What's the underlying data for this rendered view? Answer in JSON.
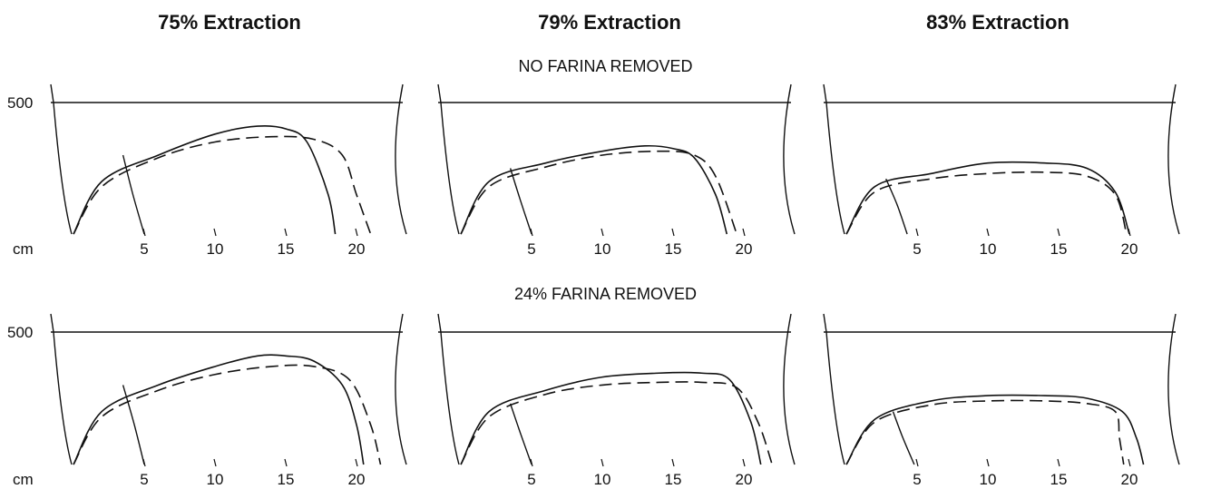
{
  "column_titles": [
    "75% Extraction",
    "79% Extraction",
    "83% Extraction"
  ],
  "row_titles": [
    "NO FARINA REMOVED",
    "24% FARINA REMOVED"
  ],
  "y_tick_label": "500",
  "x_axis_label": "cm",
  "x_tick_labels": [
    "5",
    "10",
    "15",
    "20"
  ],
  "chart_data": [
    {
      "type": "line",
      "title": "75% Extraction",
      "subtitle": "NO FARINA REMOVED",
      "xlim": [
        -1,
        24
      ],
      "ylim": [
        0,
        500
      ],
      "x_ticks": [
        5,
        10,
        15,
        20
      ],
      "y_ticks": [
        500
      ],
      "series": [
        {
          "style": "solid",
          "points": [
            [
              0,
              0
            ],
            [
              2,
              200
            ],
            [
              6,
              300
            ],
            [
              10,
              380
            ],
            [
              13,
              410
            ],
            [
              15,
              400
            ],
            [
              16.5,
              350
            ],
            [
              18,
              150
            ],
            [
              18.5,
              0
            ]
          ]
        },
        {
          "style": "dashed",
          "points": [
            [
              0,
              0
            ],
            [
              2,
              180
            ],
            [
              6,
              290
            ],
            [
              10,
              350
            ],
            [
              14,
              370
            ],
            [
              17,
              360
            ],
            [
              19,
              300
            ],
            [
              20,
              150
            ],
            [
              21,
              0
            ]
          ]
        },
        {
          "style": "extensigraph",
          "points": [
            [
              3.5,
              300
            ],
            [
              4.2,
              150
            ],
            [
              5,
              0
            ]
          ]
        }
      ]
    },
    {
      "type": "line",
      "title": "79% Extraction",
      "subtitle": "NO FARINA REMOVED",
      "xlim": [
        -1,
        24
      ],
      "ylim": [
        0,
        500
      ],
      "x_ticks": [
        5,
        10,
        15,
        20
      ],
      "y_ticks": [
        500
      ],
      "series": [
        {
          "style": "solid",
          "points": [
            [
              0,
              0
            ],
            [
              2,
              200
            ],
            [
              6,
              270
            ],
            [
              10,
              315
            ],
            [
              13,
              335
            ],
            [
              15,
              325
            ],
            [
              16.5,
              290
            ],
            [
              18,
              150
            ],
            [
              18.8,
              0
            ]
          ]
        },
        {
          "style": "dashed",
          "points": [
            [
              0,
              0
            ],
            [
              2,
              180
            ],
            [
              6,
              255
            ],
            [
              10,
              300
            ],
            [
              14,
              315
            ],
            [
              16.5,
              300
            ],
            [
              18,
              220
            ],
            [
              19.5,
              0
            ]
          ]
        },
        {
          "style": "extensigraph",
          "points": [
            [
              3.5,
              250
            ],
            [
              4.2,
              130
            ],
            [
              5,
              0
            ]
          ]
        }
      ]
    },
    {
      "type": "line",
      "title": "83% Extraction",
      "subtitle": "NO FARINA REMOVED",
      "xlim": [
        -1,
        24
      ],
      "ylim": [
        0,
        500
      ],
      "x_ticks": [
        5,
        10,
        15,
        20
      ],
      "y_ticks": [
        500
      ],
      "series": [
        {
          "style": "solid",
          "points": [
            [
              0,
              0
            ],
            [
              2,
              180
            ],
            [
              6,
              230
            ],
            [
              10,
              270
            ],
            [
              14,
              270
            ],
            [
              17,
              250
            ],
            [
              19,
              160
            ],
            [
              20,
              0
            ]
          ]
        },
        {
          "style": "dashed",
          "points": [
            [
              0,
              0
            ],
            [
              2,
              160
            ],
            [
              6,
              210
            ],
            [
              10,
              230
            ],
            [
              14,
              235
            ],
            [
              17,
              220
            ],
            [
              19,
              150
            ],
            [
              19.8,
              0
            ]
          ]
        },
        {
          "style": "extensigraph",
          "points": [
            [
              2.8,
              210
            ],
            [
              3.6,
              110
            ],
            [
              4.3,
              0
            ]
          ]
        }
      ]
    },
    {
      "type": "line",
      "title": "75% Extraction",
      "subtitle": "24% FARINA REMOVED",
      "xlim": [
        -1,
        24
      ],
      "ylim": [
        0,
        500
      ],
      "x_ticks": [
        5,
        10,
        15,
        20
      ],
      "y_ticks": [
        500
      ],
      "series": [
        {
          "style": "solid",
          "points": [
            [
              0,
              0
            ],
            [
              2,
              200
            ],
            [
              6,
              300
            ],
            [
              10,
              370
            ],
            [
              13,
              410
            ],
            [
              15,
              410
            ],
            [
              17,
              390
            ],
            [
              19,
              300
            ],
            [
              20,
              150
            ],
            [
              20.5,
              0
            ]
          ]
        },
        {
          "style": "dashed",
          "points": [
            [
              0,
              0
            ],
            [
              2,
              180
            ],
            [
              6,
              280
            ],
            [
              10,
              340
            ],
            [
              14,
              370
            ],
            [
              17,
              370
            ],
            [
              19.5,
              320
            ],
            [
              21,
              150
            ],
            [
              21.7,
              0
            ]
          ]
        },
        {
          "style": "extensigraph",
          "points": [
            [
              3.5,
              300
            ],
            [
              4.3,
              150
            ],
            [
              5,
              0
            ]
          ]
        }
      ]
    },
    {
      "type": "line",
      "title": "79% Extraction",
      "subtitle": "24% FARINA REMOVED",
      "xlim": [
        -1,
        24
      ],
      "ylim": [
        0,
        500
      ],
      "x_ticks": [
        5,
        10,
        15,
        20
      ],
      "y_ticks": [
        500
      ],
      "series": [
        {
          "style": "solid",
          "points": [
            [
              0,
              0
            ],
            [
              2,
              200
            ],
            [
              6,
              280
            ],
            [
              10,
              330
            ],
            [
              14,
              345
            ],
            [
              17,
              345
            ],
            [
              19,
              320
            ],
            [
              20.5,
              160
            ],
            [
              21.2,
              0
            ]
          ]
        },
        {
          "style": "dashed",
          "points": [
            [
              0,
              0
            ],
            [
              2,
              180
            ],
            [
              6,
              265
            ],
            [
              10,
              300
            ],
            [
              14,
              310
            ],
            [
              17,
              310
            ],
            [
              19.5,
              290
            ],
            [
              21,
              160
            ],
            [
              22,
              0
            ]
          ]
        },
        {
          "style": "extensigraph",
          "points": [
            [
              3.5,
              230
            ],
            [
              4.2,
              120
            ],
            [
              5,
              0
            ]
          ]
        }
      ]
    },
    {
      "type": "line",
      "title": "83% Extraction",
      "subtitle": "24% FARINA REMOVED",
      "xlim": [
        -1,
        24
      ],
      "ylim": [
        0,
        500
      ],
      "x_ticks": [
        5,
        10,
        15,
        20
      ],
      "y_ticks": [
        500
      ],
      "series": [
        {
          "style": "solid",
          "points": [
            [
              0,
              0
            ],
            [
              2,
              170
            ],
            [
              6,
              240
            ],
            [
              10,
              260
            ],
            [
              14,
              260
            ],
            [
              17,
              250
            ],
            [
              19.5,
              200
            ],
            [
              20.5,
              100
            ],
            [
              21,
              0
            ]
          ]
        },
        {
          "style": "dashed",
          "points": [
            [
              0,
              0
            ],
            [
              2,
              160
            ],
            [
              6,
              225
            ],
            [
              10,
              240
            ],
            [
              14,
              240
            ],
            [
              17,
              230
            ],
            [
              19,
              200
            ],
            [
              19.3,
              100
            ],
            [
              19.6,
              0
            ]
          ]
        },
        {
          "style": "extensigraph",
          "points": [
            [
              3.3,
              200
            ],
            [
              4,
              100
            ],
            [
              4.8,
              0
            ]
          ]
        }
      ]
    }
  ]
}
